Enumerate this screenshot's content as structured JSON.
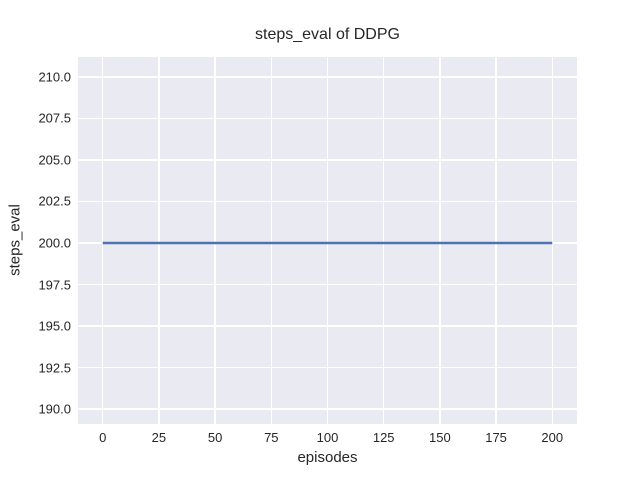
{
  "figure": {
    "background": "#ffffff",
    "text_color": "#262626"
  },
  "chart_data": {
    "type": "line",
    "title": "steps_eval of DDPG",
    "xlabel": "episodes",
    "ylabel": "steps_eval",
    "x_tick_values": [
      0,
      25,
      50,
      75,
      100,
      125,
      150,
      175,
      200
    ],
    "x_tick_labels": [
      "0",
      "25",
      "50",
      "75",
      "100",
      "125",
      "150",
      "175",
      "200"
    ],
    "y_tick_values": [
      190.0,
      192.5,
      195.0,
      197.5,
      200.0,
      202.5,
      205.0,
      207.5,
      210.0
    ],
    "y_tick_labels": [
      "190.0",
      "192.5",
      "195.0",
      "197.5",
      "200.0",
      "202.5",
      "205.0",
      "207.5",
      "210.0"
    ],
    "xlim": [
      -11,
      211
    ],
    "ylim": [
      189.1,
      211.2
    ],
    "grid": true,
    "legend": "none",
    "plot_background": "#eaeaf2",
    "grid_color": "#ffffff",
    "series": [
      {
        "name": "DDPG steps_eval",
        "color": "#4c72b0",
        "line_width": 2.4,
        "x": [
          0,
          200
        ],
        "y": [
          200,
          200
        ],
        "description": "constant value of 200 across all evaluated episodes"
      }
    ]
  }
}
